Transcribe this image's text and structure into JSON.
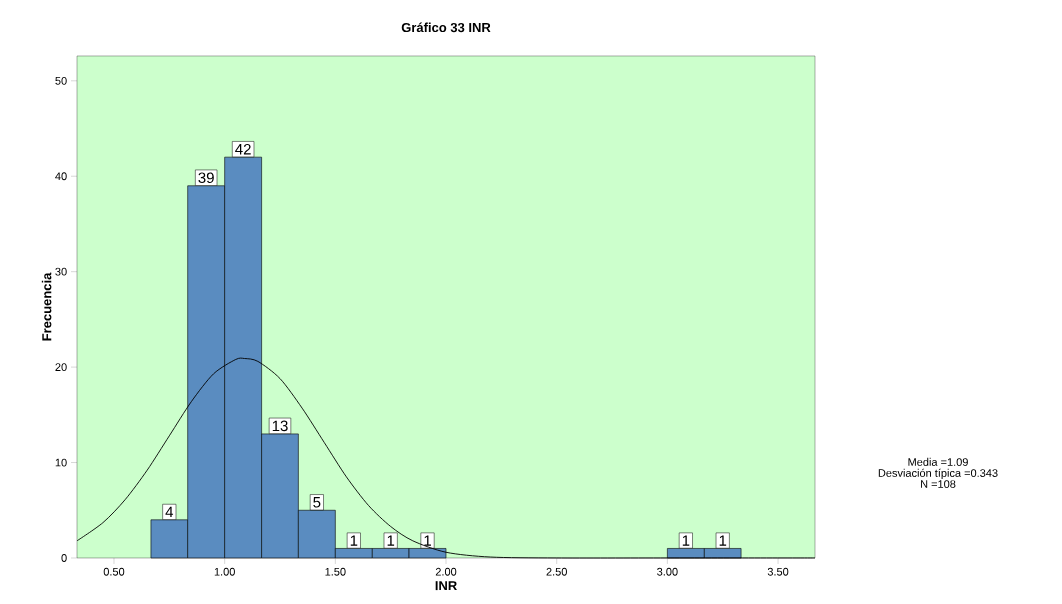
{
  "chart_data": {
    "type": "histogram",
    "title": "Gráfico 33 INR",
    "xlabel": "INR",
    "ylabel": "Frecuencia",
    "bins": [
      0.667,
      0.833,
      1.0,
      1.167,
      1.333,
      1.5,
      1.667,
      1.833,
      2.0,
      2.167,
      2.333,
      2.5,
      2.667,
      2.833,
      3.0,
      3.167,
      3.333
    ],
    "values": [
      4,
      39,
      42,
      13,
      5,
      1,
      1,
      1,
      0,
      0,
      0,
      0,
      0,
      0,
      1,
      1
    ],
    "value_labels": [
      "4",
      "39",
      "42",
      "13",
      "5",
      "1",
      "1",
      "1",
      null,
      null,
      null,
      null,
      null,
      null,
      "1",
      "1"
    ],
    "color": "#5a8cc0",
    "series": [
      {
        "type": "line",
        "color": "#000000",
        "x": [
          0.333,
          0.45,
          0.55,
          0.65,
          0.75,
          0.85,
          0.95,
          1.05,
          1.09,
          1.15,
          1.25,
          1.35,
          1.45,
          1.55,
          1.65,
          1.75,
          1.85,
          2.0,
          2.2,
          2.5,
          3.0,
          3.667
        ],
        "values": [
          1.8,
          3.7,
          6.1,
          9.2,
          12.8,
          16.4,
          19.3,
          20.8,
          20.9,
          20.6,
          18.8,
          15.7,
          12.1,
          8.5,
          5.5,
          3.3,
          1.8,
          0.6,
          0.1,
          0,
          0,
          0
        ]
      }
    ],
    "xlim": [
      0.333,
      3.667
    ],
    "ylim": [
      0,
      52.6
    ],
    "xticks": [
      {
        "value": 0.5,
        "label": "0.50"
      },
      {
        "value": 1.0,
        "label": "1.00"
      },
      {
        "value": 1.5,
        "label": "1.50"
      },
      {
        "value": 2.0,
        "label": "2.00"
      },
      {
        "value": 2.5,
        "label": "2.50"
      },
      {
        "value": 3.0,
        "label": "3.00"
      },
      {
        "value": 3.5,
        "label": "3.50"
      }
    ],
    "yticks": [
      0,
      10,
      20,
      30,
      40,
      50
    ],
    "annotations": [
      "Media =1.09",
      "Desviación típica =0.343",
      "N =108"
    ]
  }
}
